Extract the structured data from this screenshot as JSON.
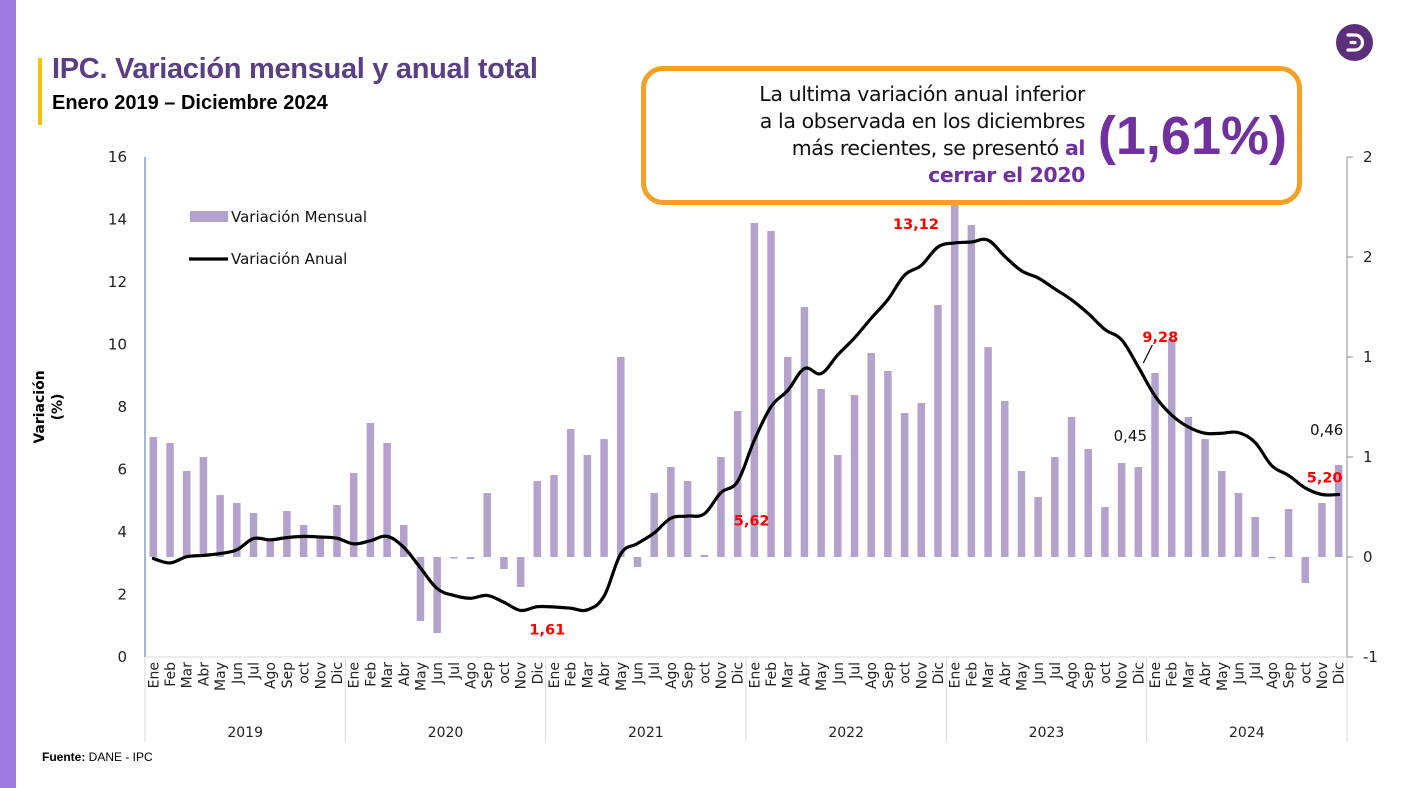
{
  "header": {
    "title": "IPC. Variación mensual y anual total",
    "subtitle": "Enero 2019 – Diciembre 2024"
  },
  "logo": {
    "icon": "dane-logo-icon",
    "color": "#5c2f7c"
  },
  "callout": {
    "line1": "La ultima variación anual inferior",
    "line2": "a la observada en los diciembres",
    "line3_plain": "más recientes, se presentó ",
    "line3_highlight": "al",
    "line4_highlight": "cerrar el 2020",
    "big_value": "(1,61%)",
    "border_color": "#f4a024",
    "highlight_color": "#7030a0"
  },
  "source": {
    "label": "Fuente:",
    "text": " DANE - IPC"
  },
  "chart_data": {
    "type": "bar+line",
    "title": "IPC. Variación mensual y anual total",
    "ylabel": "Variación (%)",
    "ylabel_lines": [
      "Variación",
      "(%)"
    ],
    "xlabel": "",
    "years": [
      "2019",
      "2020",
      "2021",
      "2022",
      "2023",
      "2024"
    ],
    "months": [
      "Ene",
      "Feb",
      "Mar",
      "Abr",
      "May",
      "Jun",
      "Jul",
      "Ago",
      "Sep",
      "oct",
      "Nov",
      "Dic"
    ],
    "left_axis": {
      "min": 0,
      "max": 16,
      "ticks": [
        "0",
        "2",
        "4",
        "6",
        "8",
        "10",
        "12",
        "14",
        "16"
      ],
      "tick_values": [
        0,
        2,
        4,
        6,
        8,
        10,
        12,
        14,
        16
      ]
    },
    "right_axis": {
      "min": -0.5,
      "max": 2.0,
      "ticks": [
        "-1",
        "0",
        "1",
        "1",
        "2",
        "2"
      ],
      "tick_values": [
        -0.5,
        0,
        0.5,
        1.0,
        1.5,
        2.0
      ]
    },
    "legend": {
      "position": "top-left",
      "entries": [
        {
          "name": "Variación Mensual",
          "type": "bar",
          "color": "#b3a2cb"
        },
        {
          "name": "Variación Anual",
          "type": "line",
          "color": "#000000"
        }
      ]
    },
    "series": [
      {
        "name": "Variación Mensual",
        "axis": "right",
        "type": "bar",
        "color": "#b3a2cb",
        "values": [
          0.6,
          0.57,
          0.43,
          0.5,
          0.31,
          0.27,
          0.22,
          0.09,
          0.23,
          0.16,
          0.1,
          0.26,
          0.42,
          0.67,
          0.57,
          0.16,
          -0.32,
          -0.38,
          0.0,
          -0.01,
          0.32,
          -0.06,
          -0.15,
          0.38,
          0.41,
          0.64,
          0.51,
          0.59,
          1.0,
          -0.05,
          0.32,
          0.45,
          0.38,
          0.01,
          0.5,
          0.73,
          1.67,
          1.63,
          1.0,
          1.25,
          0.84,
          0.51,
          0.81,
          1.02,
          0.93,
          0.72,
          0.77,
          1.26,
          1.78,
          1.66,
          1.05,
          0.78,
          0.43,
          0.3,
          0.5,
          0.7,
          0.54,
          0.25,
          0.47,
          0.45,
          0.92,
          1.09,
          0.7,
          0.59,
          0.43,
          0.32,
          0.2,
          0.0,
          0.24,
          -0.13,
          0.27,
          0.46
        ]
      },
      {
        "name": "Variación Anual",
        "axis": "left",
        "type": "line",
        "color": "#000000",
        "values": [
          3.15,
          3.01,
          3.21,
          3.25,
          3.31,
          3.43,
          3.79,
          3.75,
          3.82,
          3.86,
          3.84,
          3.8,
          3.62,
          3.72,
          3.86,
          3.51,
          2.85,
          2.19,
          1.97,
          1.88,
          1.97,
          1.75,
          1.49,
          1.61,
          1.6,
          1.56,
          1.51,
          1.95,
          3.3,
          3.63,
          3.97,
          4.44,
          4.51,
          4.58,
          5.26,
          5.62,
          6.94,
          8.01,
          8.53,
          9.23,
          9.07,
          9.67,
          10.21,
          10.84,
          11.44,
          12.22,
          12.53,
          13.12,
          13.25,
          13.28,
          13.34,
          12.82,
          12.36,
          12.13,
          11.78,
          11.43,
          10.99,
          10.48,
          10.15,
          9.28,
          8.35,
          7.74,
          7.36,
          7.16,
          7.16,
          7.18,
          6.86,
          6.12,
          5.81,
          5.41,
          5.2,
          5.2
        ]
      }
    ],
    "annotations": [
      {
        "text": "1,61",
        "series": "Variación Anual",
        "index": 23,
        "color": "#ff0000"
      },
      {
        "text": "5,62",
        "series": "Variación Anual",
        "index": 35,
        "color": "#ff0000"
      },
      {
        "text": "13,12",
        "series": "Variación Anual",
        "index": 47,
        "color": "#ff0000"
      },
      {
        "text": "9,28",
        "series": "Variación Anual",
        "index": 59,
        "color": "#ff0000"
      },
      {
        "text": "5,20",
        "series": "Variación Anual",
        "index": 71,
        "color": "#ff0000"
      },
      {
        "text": "0,45",
        "series": "Variación Mensual",
        "index": 59,
        "color": "#111111"
      },
      {
        "text": "0,46",
        "series": "Variación Mensual",
        "index": 71,
        "color": "#111111"
      }
    ],
    "grid": false
  }
}
